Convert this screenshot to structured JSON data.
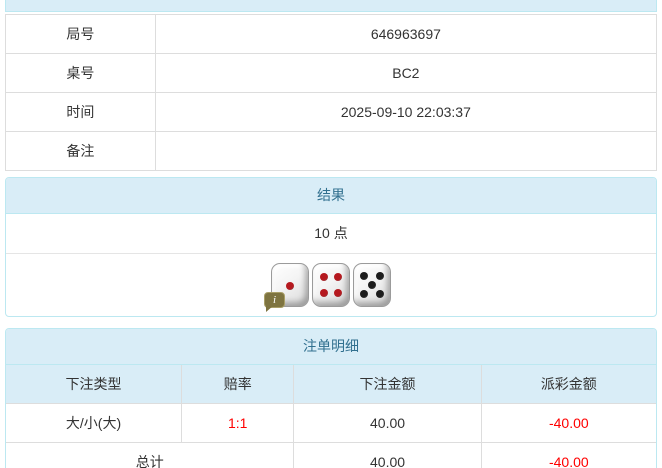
{
  "colors": {
    "heading_bg": "#d9edf7",
    "heading_text": "#31708f",
    "panel_border": "#bce8f1",
    "cell_border": "#dddddd",
    "body_text": "#333333",
    "negative_text": "#ff0000",
    "red_pip": "#b5191f",
    "black_pip": "#1c1c1c",
    "info_badge_bg": "#7e7440"
  },
  "info_table": {
    "rows": [
      {
        "label": "局号",
        "value": "646963697"
      },
      {
        "label": "桌号",
        "value": "BC2"
      },
      {
        "label": "时间",
        "value": "2025-09-10 22:03:37"
      },
      {
        "label": "备注",
        "value": ""
      }
    ]
  },
  "result_panel": {
    "title": "结果",
    "points": "10 点",
    "dice": [
      {
        "value": 1,
        "pip_color": "#b5191f"
      },
      {
        "value": 4,
        "pip_color": "#b5191f"
      },
      {
        "value": 5,
        "pip_color": "#1c1c1c"
      }
    ],
    "info_icon_label": "i"
  },
  "bets_panel": {
    "title": "注单明细",
    "columns": [
      "下注类型",
      "赔率",
      "下注金额",
      "派彩金额"
    ],
    "rows": [
      {
        "type": "大/小(大)",
        "odds": "1:1",
        "bet": "40.00",
        "payout": "-40.00"
      }
    ],
    "total": {
      "label": "总计",
      "bet": "40.00",
      "payout": "-40.00"
    }
  }
}
